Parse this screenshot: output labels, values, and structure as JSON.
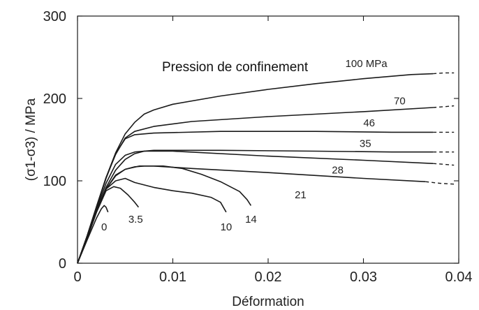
{
  "chart_data": {
    "type": "line",
    "title": "",
    "xlabel": "Déformation",
    "ylabel": "(σ1-σ3) / MPa",
    "xlim": [
      0,
      0.04
    ],
    "ylim": [
      0,
      300
    ],
    "x_ticks": [
      0,
      0.01,
      0.02,
      0.03,
      0.04
    ],
    "x_tick_labels": [
      "0",
      "0.01",
      "0.02",
      "0.03",
      "0.04"
    ],
    "y_ticks": [
      0,
      100,
      200,
      300
    ],
    "y_tick_labels": [
      "0",
      "100",
      "200",
      "300"
    ],
    "grid": false,
    "annotation": "Pression de confinement",
    "series": [
      {
        "name": "0",
        "solid": [
          [
            0,
            0
          ],
          [
            0.001,
            28
          ],
          [
            0.002,
            55
          ],
          [
            0.0025,
            66
          ],
          [
            0.0028,
            70
          ],
          [
            0.003,
            68
          ],
          [
            0.0032,
            62
          ]
        ],
        "dashed": []
      },
      {
        "name": "3.5",
        "solid": [
          [
            0,
            0
          ],
          [
            0.001,
            30
          ],
          [
            0.002,
            62
          ],
          [
            0.003,
            88
          ],
          [
            0.0038,
            93
          ],
          [
            0.0045,
            91
          ],
          [
            0.0053,
            83
          ],
          [
            0.006,
            74
          ],
          [
            0.0064,
            68
          ]
        ],
        "dashed": []
      },
      {
        "name": "10",
        "solid": [
          [
            0,
            0
          ],
          [
            0.001,
            30
          ],
          [
            0.002,
            63
          ],
          [
            0.003,
            90
          ],
          [
            0.004,
            100
          ],
          [
            0.005,
            103
          ],
          [
            0.006,
            98
          ],
          [
            0.008,
            92
          ],
          [
            0.01,
            88
          ],
          [
            0.012,
            85
          ],
          [
            0.014,
            80
          ],
          [
            0.015,
            74
          ],
          [
            0.0156,
            62
          ]
        ],
        "dashed": []
      },
      {
        "name": "14",
        "solid": [
          [
            0,
            0
          ],
          [
            0.001,
            30
          ],
          [
            0.002,
            63
          ],
          [
            0.003,
            90
          ],
          [
            0.004,
            106
          ],
          [
            0.005,
            114
          ],
          [
            0.006,
            117
          ],
          [
            0.007,
            118
          ],
          [
            0.009,
            118
          ],
          [
            0.011,
            115
          ],
          [
            0.013,
            108
          ],
          [
            0.015,
            99
          ],
          [
            0.017,
            87
          ],
          [
            0.0178,
            77
          ],
          [
            0.0182,
            70
          ]
        ],
        "dashed": []
      },
      {
        "name": "21",
        "solid": [
          [
            0,
            0
          ],
          [
            0.001,
            30
          ],
          [
            0.002,
            63
          ],
          [
            0.003,
            90
          ],
          [
            0.004,
            107
          ],
          [
            0.005,
            114
          ],
          [
            0.0065,
            118
          ],
          [
            0.008,
            118
          ],
          [
            0.012,
            115
          ],
          [
            0.02,
            110
          ],
          [
            0.03,
            103
          ],
          [
            0.0365,
            99
          ]
        ],
        "dashed": [
          [
            0.0365,
            99
          ],
          [
            0.038,
            97
          ],
          [
            0.0395,
            96
          ]
        ]
      },
      {
        "name": "28",
        "solid": [
          [
            0,
            0
          ],
          [
            0.001,
            31
          ],
          [
            0.002,
            64
          ],
          [
            0.003,
            92
          ],
          [
            0.004,
            113
          ],
          [
            0.005,
            126
          ],
          [
            0.006,
            133
          ],
          [
            0.007,
            136
          ],
          [
            0.01,
            136
          ],
          [
            0.02,
            130
          ],
          [
            0.03,
            125
          ],
          [
            0.0373,
            121
          ]
        ],
        "dashed": [
          [
            0.0373,
            121
          ],
          [
            0.0385,
            120
          ],
          [
            0.0395,
            119
          ]
        ]
      },
      {
        "name": "35",
        "solid": [
          [
            0,
            0
          ],
          [
            0.001,
            32
          ],
          [
            0.002,
            66
          ],
          [
            0.003,
            97
          ],
          [
            0.004,
            120
          ],
          [
            0.005,
            131
          ],
          [
            0.006,
            135
          ],
          [
            0.008,
            137
          ],
          [
            0.015,
            137
          ],
          [
            0.025,
            136
          ],
          [
            0.033,
            135
          ],
          [
            0.0373,
            135
          ]
        ],
        "dashed": [
          [
            0.0373,
            135
          ],
          [
            0.0385,
            135
          ],
          [
            0.0395,
            135
          ]
        ]
      },
      {
        "name": "46",
        "solid": [
          [
            0,
            0
          ],
          [
            0.001,
            33
          ],
          [
            0.002,
            68
          ],
          [
            0.003,
            103
          ],
          [
            0.004,
            133
          ],
          [
            0.005,
            151
          ],
          [
            0.006,
            156
          ],
          [
            0.008,
            158
          ],
          [
            0.015,
            160
          ],
          [
            0.025,
            160
          ],
          [
            0.033,
            159
          ],
          [
            0.0373,
            159
          ]
        ],
        "dashed": [
          [
            0.0373,
            159
          ],
          [
            0.0385,
            159
          ],
          [
            0.0395,
            159
          ]
        ]
      },
      {
        "name": "70",
        "solid": [
          [
            0,
            0
          ],
          [
            0.001,
            33
          ],
          [
            0.002,
            69
          ],
          [
            0.003,
            104
          ],
          [
            0.004,
            132
          ],
          [
            0.005,
            152
          ],
          [
            0.006,
            160
          ],
          [
            0.008,
            166
          ],
          [
            0.012,
            172
          ],
          [
            0.02,
            178
          ],
          [
            0.03,
            184
          ],
          [
            0.0373,
            189
          ]
        ],
        "dashed": [
          [
            0.0373,
            189
          ],
          [
            0.0385,
            190
          ],
          [
            0.0395,
            191
          ]
        ]
      },
      {
        "name": "100 MPa",
        "solid": [
          [
            0,
            0
          ],
          [
            0.001,
            33
          ],
          [
            0.002,
            69
          ],
          [
            0.003,
            104
          ],
          [
            0.004,
            134
          ],
          [
            0.005,
            157
          ],
          [
            0.006,
            171
          ],
          [
            0.007,
            181
          ],
          [
            0.008,
            186
          ],
          [
            0.01,
            193
          ],
          [
            0.015,
            203
          ],
          [
            0.02,
            211
          ],
          [
            0.025,
            218
          ],
          [
            0.03,
            224
          ],
          [
            0.035,
            229
          ],
          [
            0.0373,
            230
          ]
        ],
        "dashed": [
          [
            0.0373,
            230
          ],
          [
            0.0385,
            231
          ],
          [
            0.0395,
            231
          ]
        ]
      }
    ]
  }
}
